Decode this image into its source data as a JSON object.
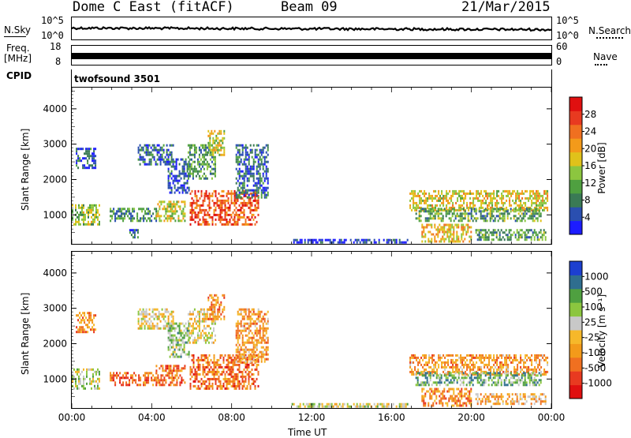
{
  "header": {
    "station": "Dome C East (fitACF)",
    "beam": "Beam 09",
    "date": "21/Mar/2015"
  },
  "top_panels": {
    "nsky_label": "N.Sky",
    "nsky_ticks": [
      "10^5",
      "10^0"
    ],
    "nsearch_label": "N.Search",
    "nsearch_ticks": [
      "10^5",
      "10^0"
    ],
    "freq_label": "Freq.",
    "freq_unit": "[MHz]",
    "freq_ticks": [
      "18",
      "8"
    ],
    "nave_label": "Nave",
    "nave_ticks": [
      "60",
      "0"
    ],
    "cpid_label": "CPID",
    "cpid_value": "twofsound 3501"
  },
  "chart_data": [
    {
      "type": "heatmap",
      "name": "power",
      "ylabel": "Slant Range [km]",
      "yticks": [
        "4000",
        "3000",
        "2000",
        "1000"
      ],
      "ylim": [
        180,
        4600
      ],
      "xlim": [
        0,
        24
      ],
      "colorbar_label": "Power [dB]",
      "colorbar_ticks": [
        "28",
        "24",
        "20",
        "16",
        "12",
        "8",
        "4"
      ],
      "colors": [
        "#1c1cff",
        "#2a4fb0",
        "#3a7a55",
        "#4fa040",
        "#8cc63f",
        "#e0c21a",
        "#f39a1a",
        "#f07020",
        "#e83a20",
        "#e01010"
      ],
      "echo_regions": [
        {
          "t0": 0.0,
          "t1": 1.4,
          "r0": 700,
          "r1": 1300,
          "level": 0.45
        },
        {
          "t0": 0.2,
          "t1": 1.2,
          "r0": 2300,
          "r1": 2900,
          "level": 0.15
        },
        {
          "t0": 1.9,
          "t1": 4.2,
          "r0": 850,
          "r1": 1200,
          "level": 0.3
        },
        {
          "t0": 2.8,
          "t1": 3.3,
          "r0": 350,
          "r1": 600,
          "level": 0.2
        },
        {
          "t0": 3.3,
          "t1": 5.1,
          "r0": 2400,
          "r1": 3000,
          "level": 0.2
        },
        {
          "t0": 4.2,
          "t1": 5.7,
          "r0": 800,
          "r1": 1400,
          "level": 0.5
        },
        {
          "t0": 4.8,
          "t1": 5.9,
          "r0": 1600,
          "r1": 2600,
          "level": 0.15
        },
        {
          "t0": 5.8,
          "t1": 7.2,
          "r0": 2000,
          "r1": 3000,
          "level": 0.3
        },
        {
          "t0": 5.9,
          "t1": 9.3,
          "r0": 700,
          "r1": 1700,
          "level": 0.8
        },
        {
          "t0": 6.8,
          "t1": 7.6,
          "r0": 2700,
          "r1": 3400,
          "level": 0.5
        },
        {
          "t0": 8.2,
          "t1": 9.8,
          "r0": 1500,
          "r1": 3000,
          "level": 0.2
        },
        {
          "t0": 16.9,
          "t1": 23.8,
          "r0": 1150,
          "r1": 1700,
          "level": 0.55
        },
        {
          "t0": 17.2,
          "t1": 23.5,
          "r0": 850,
          "r1": 1200,
          "level": 0.35
        },
        {
          "t0": 17.5,
          "t1": 20.0,
          "r0": 280,
          "r1": 750,
          "level": 0.6
        },
        {
          "t0": 20.2,
          "t1": 23.7,
          "r0": 300,
          "r1": 600,
          "level": 0.35
        },
        {
          "t0": 11.0,
          "t1": 16.8,
          "r0": 200,
          "r1": 320,
          "level": 0.1
        }
      ]
    },
    {
      "type": "heatmap",
      "name": "velocity",
      "ylabel": "Slant Range [km]",
      "yticks": [
        "4000",
        "3000",
        "2000",
        "1000"
      ],
      "ylim": [
        180,
        4600
      ],
      "xlim": [
        0,
        24
      ],
      "xlabel": "Time UT",
      "xticks": [
        "00:00",
        "04:00",
        "08:00",
        "12:00",
        "16:00",
        "20:00",
        "00:00"
      ],
      "colorbar_label": "Velocity [m s⁻¹]",
      "colorbar_ticks": [
        "1000",
        "500",
        "100",
        "25",
        "-25",
        "-100",
        "-500",
        "-1000"
      ],
      "colors": [
        "#e01010",
        "#e83a20",
        "#f07020",
        "#f39a1a",
        "#f6b82a",
        "#c8c8c8",
        "#8cc63f",
        "#4fa040",
        "#2f6e8f",
        "#1c3fd0"
      ],
      "echo_regions": [
        {
          "t0": 0.0,
          "t1": 1.4,
          "r0": 700,
          "r1": 1300,
          "level": 0.6
        },
        {
          "t0": 0.2,
          "t1": 1.2,
          "r0": 2300,
          "r1": 2900,
          "level": 0.3
        },
        {
          "t0": 1.9,
          "t1": 4.2,
          "r0": 850,
          "r1": 1200,
          "level": 0.25
        },
        {
          "t0": 3.3,
          "t1": 5.1,
          "r0": 2400,
          "r1": 3000,
          "level": 0.5
        },
        {
          "t0": 4.2,
          "t1": 5.7,
          "r0": 800,
          "r1": 1400,
          "level": 0.25
        },
        {
          "t0": 4.8,
          "t1": 5.9,
          "r0": 1600,
          "r1": 2600,
          "level": 0.65
        },
        {
          "t0": 5.8,
          "t1": 7.2,
          "r0": 2000,
          "r1": 3000,
          "level": 0.5
        },
        {
          "t0": 5.9,
          "t1": 9.3,
          "r0": 700,
          "r1": 1700,
          "level": 0.25
        },
        {
          "t0": 6.8,
          "t1": 7.6,
          "r0": 2700,
          "r1": 3400,
          "level": 0.3
        },
        {
          "t0": 8.2,
          "t1": 9.8,
          "r0": 1500,
          "r1": 3000,
          "level": 0.35
        },
        {
          "t0": 16.9,
          "t1": 23.8,
          "r0": 1150,
          "r1": 1700,
          "level": 0.35
        },
        {
          "t0": 17.2,
          "t1": 23.5,
          "r0": 850,
          "r1": 1200,
          "level": 0.7
        },
        {
          "t0": 17.5,
          "t1": 20.0,
          "r0": 280,
          "r1": 750,
          "level": 0.3
        },
        {
          "t0": 20.2,
          "t1": 23.7,
          "r0": 300,
          "r1": 600,
          "level": 0.4
        },
        {
          "t0": 11.0,
          "t1": 16.8,
          "r0": 200,
          "r1": 320,
          "level": 0.55
        }
      ]
    }
  ]
}
